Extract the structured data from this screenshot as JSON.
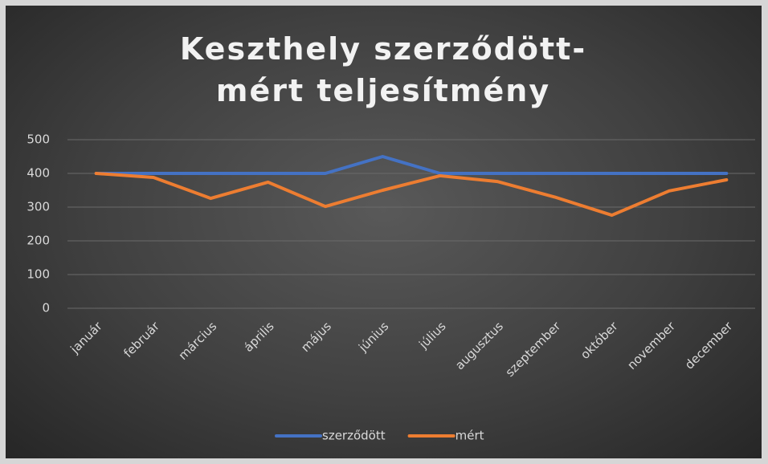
{
  "chart_data": {
    "type": "line",
    "title": "Keszthely szerződött-mért teljesítmény",
    "categories": [
      "január",
      "február",
      "március",
      "április",
      "május",
      "június",
      "július",
      "augusztus",
      "szeptember",
      "október",
      "november",
      "december"
    ],
    "series": [
      {
        "name": "szerződött",
        "color": "#4472c4",
        "values": [
          400,
          400,
          400,
          400,
          400,
          450,
          400,
          400,
          400,
          400,
          400,
          400
        ]
      },
      {
        "name": "mért",
        "color": "#ed7d31",
        "values": [
          400,
          388,
          326,
          374,
          302,
          350,
          393,
          376,
          330,
          276,
          348,
          381
        ]
      }
    ],
    "ylim": [
      0,
      500
    ],
    "yticks": [
      0,
      100,
      200,
      300,
      400,
      500
    ],
    "grid": true,
    "legend": "bottom"
  }
}
